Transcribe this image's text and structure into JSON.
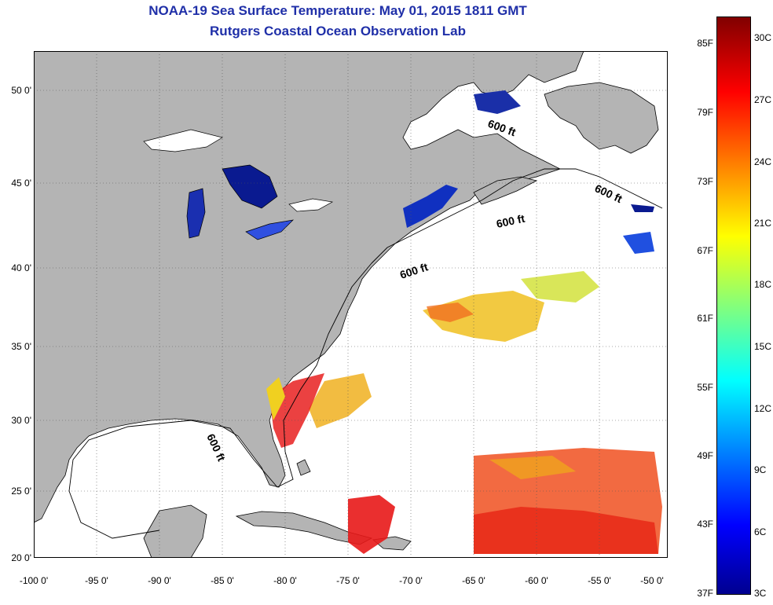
{
  "header": {
    "title": "NOAA-19 Sea Surface Temperature:  May 01, 2015 1811 GMT",
    "subtitle": "Rutgers Coastal Ocean Observation Lab"
  },
  "map": {
    "lon_range": [
      -100,
      -50
    ],
    "lat_range": [
      20,
      52
    ],
    "lat_ticks": [
      "50 0'",
      "45 0'",
      "40 0'",
      "35 0'",
      "30 0'",
      "25 0'",
      "20 0'"
    ],
    "lon_ticks": [
      "-100 0'",
      "-95 0'",
      "-90 0'",
      "-85 0'",
      "-80 0'",
      "-75 0'",
      "-70 0'",
      "-65 0'",
      "-60 0'",
      "-55 0'",
      "-50 0'"
    ],
    "contour_labels": [
      "600 ft",
      "600 ft",
      "600 ft",
      "600 ft",
      "600 ft"
    ],
    "land_color": "#b4b4b4",
    "ocean_color": "#ffffff",
    "grid": "dotted"
  },
  "colorbar": {
    "fahrenheit_labels": [
      "85F",
      "79F",
      "73F",
      "67F",
      "61F",
      "55F",
      "49F",
      "43F",
      "37F"
    ],
    "celsius_labels": [
      "30C",
      "27C",
      "24C",
      "21C",
      "18C",
      "15C",
      "12C",
      "9C",
      "6C",
      "3C"
    ],
    "colormap": "jet",
    "range_c": [
      3,
      30
    ]
  }
}
